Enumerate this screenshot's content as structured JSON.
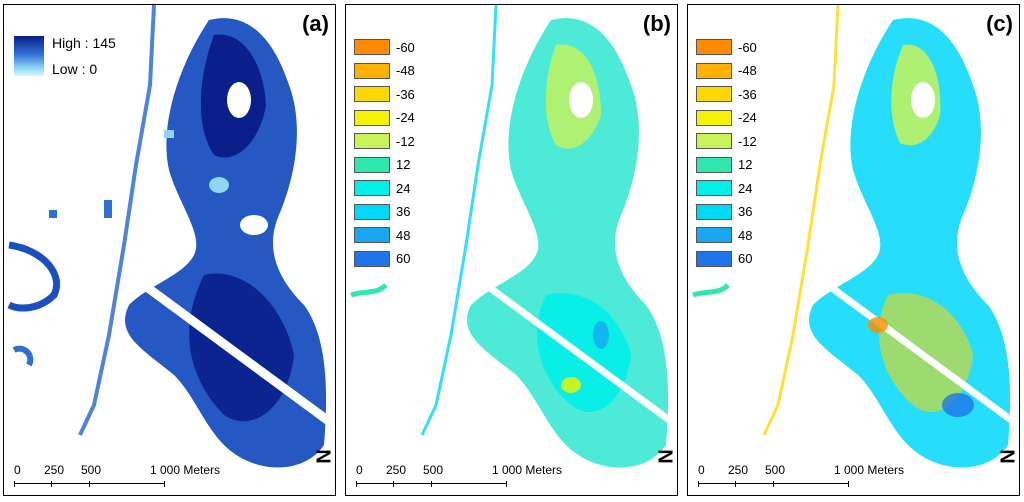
{
  "panels": [
    {
      "id": "a",
      "label": "(a)"
    },
    {
      "id": "b",
      "label": "(b)"
    },
    {
      "id": "c",
      "label": "(c)"
    }
  ],
  "legend_a": {
    "high": "High : 145",
    "low": "Low : 0"
  },
  "legend_bc": [
    {
      "label": "-60",
      "color": "#ff8c00"
    },
    {
      "label": "-48",
      "color": "#ffb000"
    },
    {
      "label": "-36",
      "color": "#ffd800"
    },
    {
      "label": "-24",
      "color": "#f4f400"
    },
    {
      "label": "-12",
      "color": "#c8f25a"
    },
    {
      "label": "12",
      "color": "#2ee8b0"
    },
    {
      "label": "24",
      "color": "#00f0e8"
    },
    {
      "label": "36",
      "color": "#00d8f8"
    },
    {
      "label": "48",
      "color": "#18a8f0"
    },
    {
      "label": "60",
      "color": "#1e74e8"
    }
  ],
  "scalebar": {
    "ticks": [
      "0",
      "250",
      "500",
      "1 000 Meters"
    ]
  },
  "north_arrow": "N",
  "colors": {
    "dark_blue": "#0a1f8a",
    "blue": "#2f6fd3",
    "light_blue": "#8fd6f3"
  }
}
